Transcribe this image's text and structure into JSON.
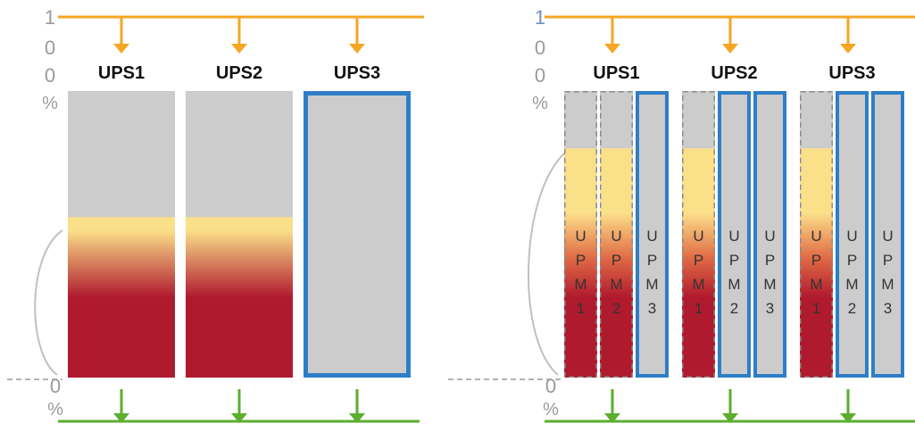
{
  "colors": {
    "input_line": "#F5A623",
    "output_line": "#5BAE2E",
    "active_border": "#2E7EC7",
    "idle_fill": "#CCCCCC",
    "load_low": "#FBE08A",
    "load_high": "#B01A2E",
    "axis_gray": "#9A9A9A"
  },
  "left_panel": {
    "axis_top": [
      "1",
      "0",
      "0",
      "%"
    ],
    "axis_bottom": [
      "0",
      "%"
    ],
    "units": [
      {
        "label": "UPS1",
        "load_fraction": 0.56,
        "state": "sharing-load"
      },
      {
        "label": "UPS2",
        "load_fraction": 0.56,
        "state": "sharing-load"
      },
      {
        "label": "UPS3",
        "load_fraction": 0.0,
        "state": "standby"
      }
    ]
  },
  "right_panel": {
    "axis_top": [
      "1",
      "0",
      "0",
      "%"
    ],
    "axis_bottom": [
      "0",
      "%"
    ],
    "units": [
      {
        "label": "UPS1",
        "modules": [
          {
            "label": [
              "U",
              "P",
              "M",
              "1"
            ],
            "load_fraction": 0.8,
            "state": "sharing-load"
          },
          {
            "label": [
              "U",
              "P",
              "M",
              "2"
            ],
            "load_fraction": 0.8,
            "state": "sharing-load"
          },
          {
            "label": [
              "U",
              "P",
              "M",
              "3"
            ],
            "load_fraction": 0.0,
            "state": "standby"
          }
        ]
      },
      {
        "label": "UPS2",
        "modules": [
          {
            "label": [
              "U",
              "P",
              "M",
              "1"
            ],
            "load_fraction": 0.8,
            "state": "sharing-load"
          },
          {
            "label": [
              "U",
              "P",
              "M",
              "2"
            ],
            "load_fraction": 0.0,
            "state": "standby"
          },
          {
            "label": [
              "U",
              "P",
              "M",
              "3"
            ],
            "load_fraction": 0.0,
            "state": "standby"
          }
        ]
      },
      {
        "label": "UPS3",
        "modules": [
          {
            "label": [
              "U",
              "P",
              "M",
              "1"
            ],
            "load_fraction": 0.8,
            "state": "sharing-load"
          },
          {
            "label": [
              "U",
              "P",
              "M",
              "2"
            ],
            "load_fraction": 0.0,
            "state": "standby"
          },
          {
            "label": [
              "U",
              "P",
              "M",
              "3"
            ],
            "load_fraction": 0.0,
            "state": "standby"
          }
        ]
      }
    ]
  }
}
